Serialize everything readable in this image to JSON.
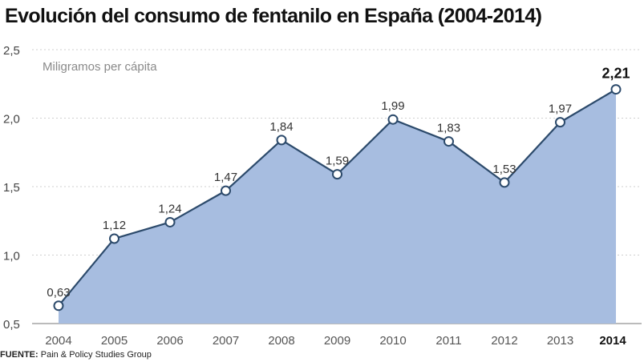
{
  "chart_data": {
    "type": "area",
    "title": "Evolución del consumo de fentanilo en España (2004-2014)",
    "subtitle": "Miligramos per cápita",
    "categories": [
      "2004",
      "2005",
      "2006",
      "2007",
      "2008",
      "2009",
      "2010",
      "2011",
      "2012",
      "2013",
      "2014"
    ],
    "values": [
      0.63,
      1.12,
      1.24,
      1.47,
      1.84,
      1.59,
      1.99,
      1.83,
      1.53,
      1.97,
      2.21
    ],
    "value_labels": [
      "0,63",
      "1,12",
      "1,24",
      "1,47",
      "1,84",
      "1,59",
      "1,99",
      "1,83",
      "1,53",
      "1,97",
      "2,21"
    ],
    "y_ticks": [
      0.5,
      1.0,
      1.5,
      2.0,
      2.5
    ],
    "y_tick_labels": [
      "0,5",
      "1,0",
      "1,5",
      "2,0",
      "2,5"
    ],
    "ylim": [
      0.5,
      2.5
    ],
    "highlight_last": true,
    "grid": "horizontal dotted",
    "colors": {
      "fill": "#a7bde0",
      "line": "#2c4a6b",
      "marker_fill": "#ffffff"
    }
  },
  "source": {
    "prefix": "FUENTE:",
    "text": "Pain & Policy Studies Group"
  }
}
